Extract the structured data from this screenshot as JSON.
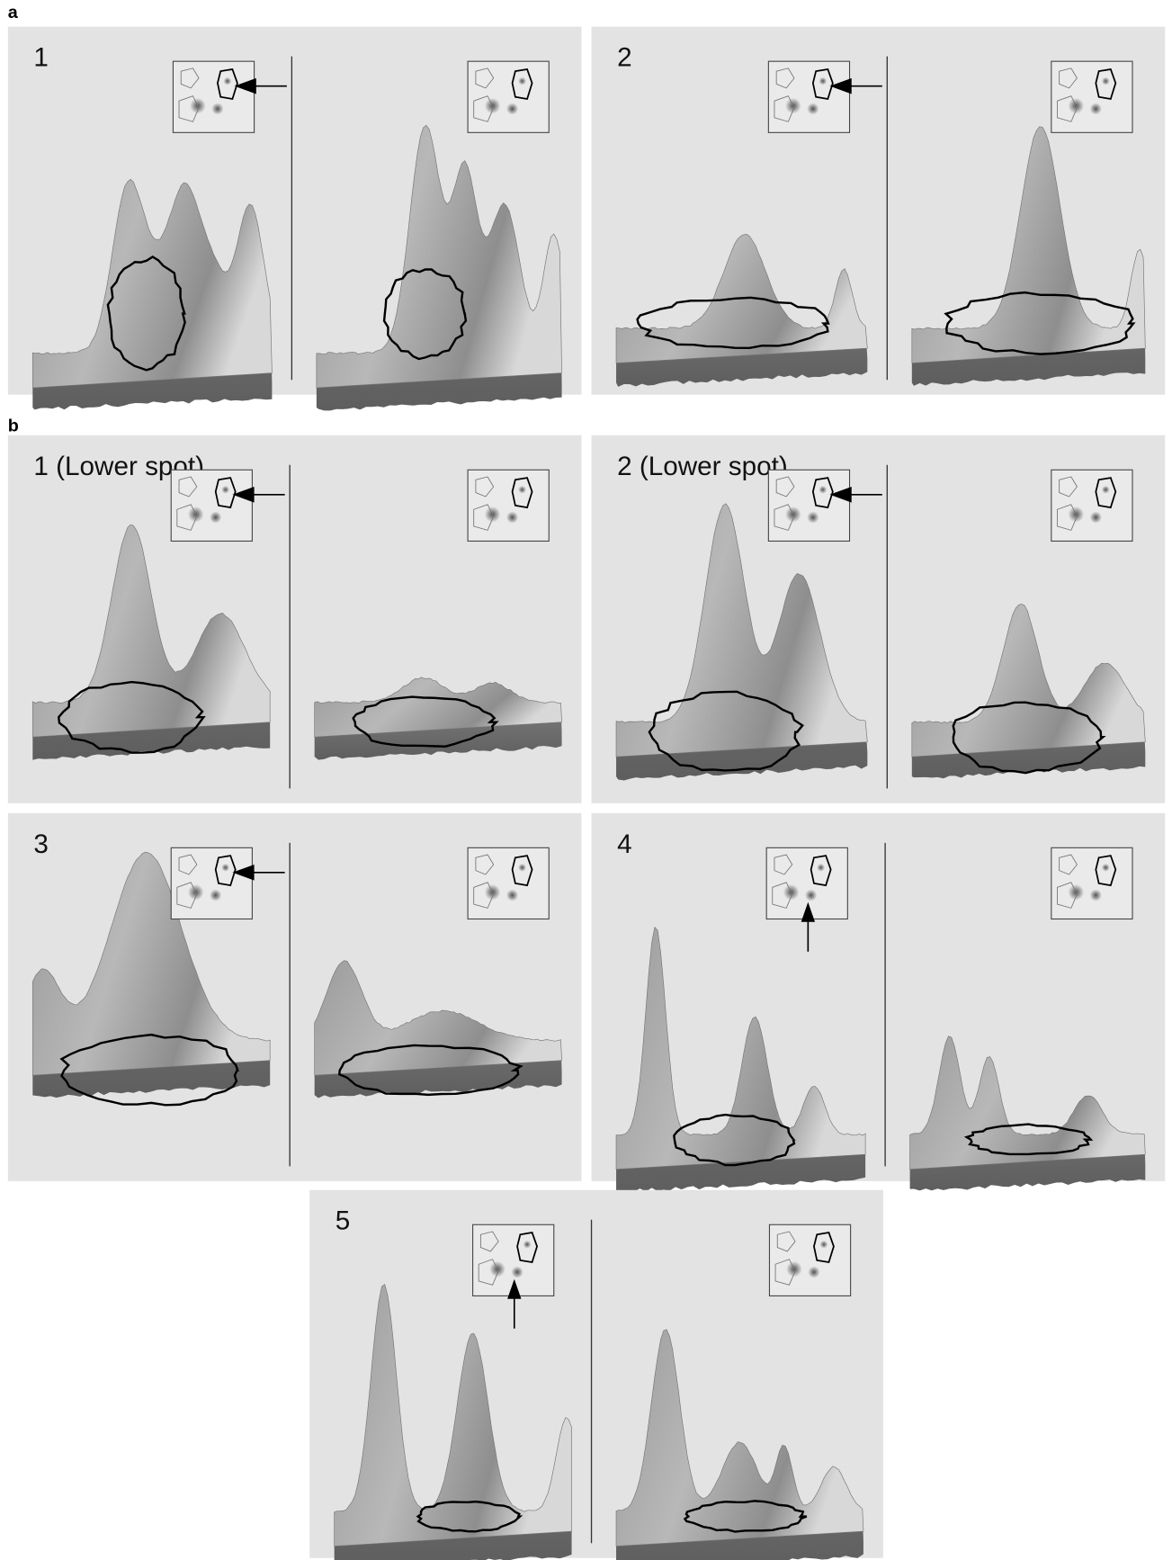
{
  "sections": [
    {
      "label": "a",
      "panels": [
        {
          "label": "1"
        },
        {
          "label": "2"
        }
      ]
    },
    {
      "label": "b",
      "panels": [
        {
          "label": "1 (Lower spot)"
        },
        {
          "label": "2 (Lower spot)"
        },
        {
          "label": "3"
        },
        {
          "label": "4"
        },
        {
          "label": "5"
        }
      ]
    }
  ]
}
